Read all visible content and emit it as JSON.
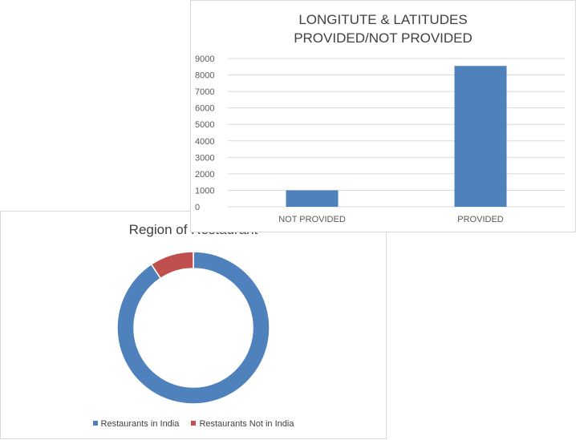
{
  "colors": {
    "blue": "#4f81bd",
    "red": "#c0504d",
    "grid": "#d9d9d9",
    "text": "#595959"
  },
  "chart_data": [
    {
      "type": "bar",
      "title": "LONGITUTE & LATITUDES PROVIDED/NOT PROVIDED",
      "categories": [
        "NOT PROVIDED",
        "PROVIDED"
      ],
      "values": [
        1000,
        8550
      ],
      "ylim": [
        0,
        9000
      ],
      "yticks": [
        0,
        1000,
        2000,
        3000,
        4000,
        5000,
        6000,
        7000,
        8000,
        9000
      ],
      "grid": true
    },
    {
      "type": "pie",
      "style": "donut",
      "title": "Region of Restaurant",
      "labels": [
        "Restaurants in India",
        "Restaurants Not in India"
      ],
      "values": [
        90.7,
        9.3
      ],
      "legend": "bottom"
    }
  ]
}
